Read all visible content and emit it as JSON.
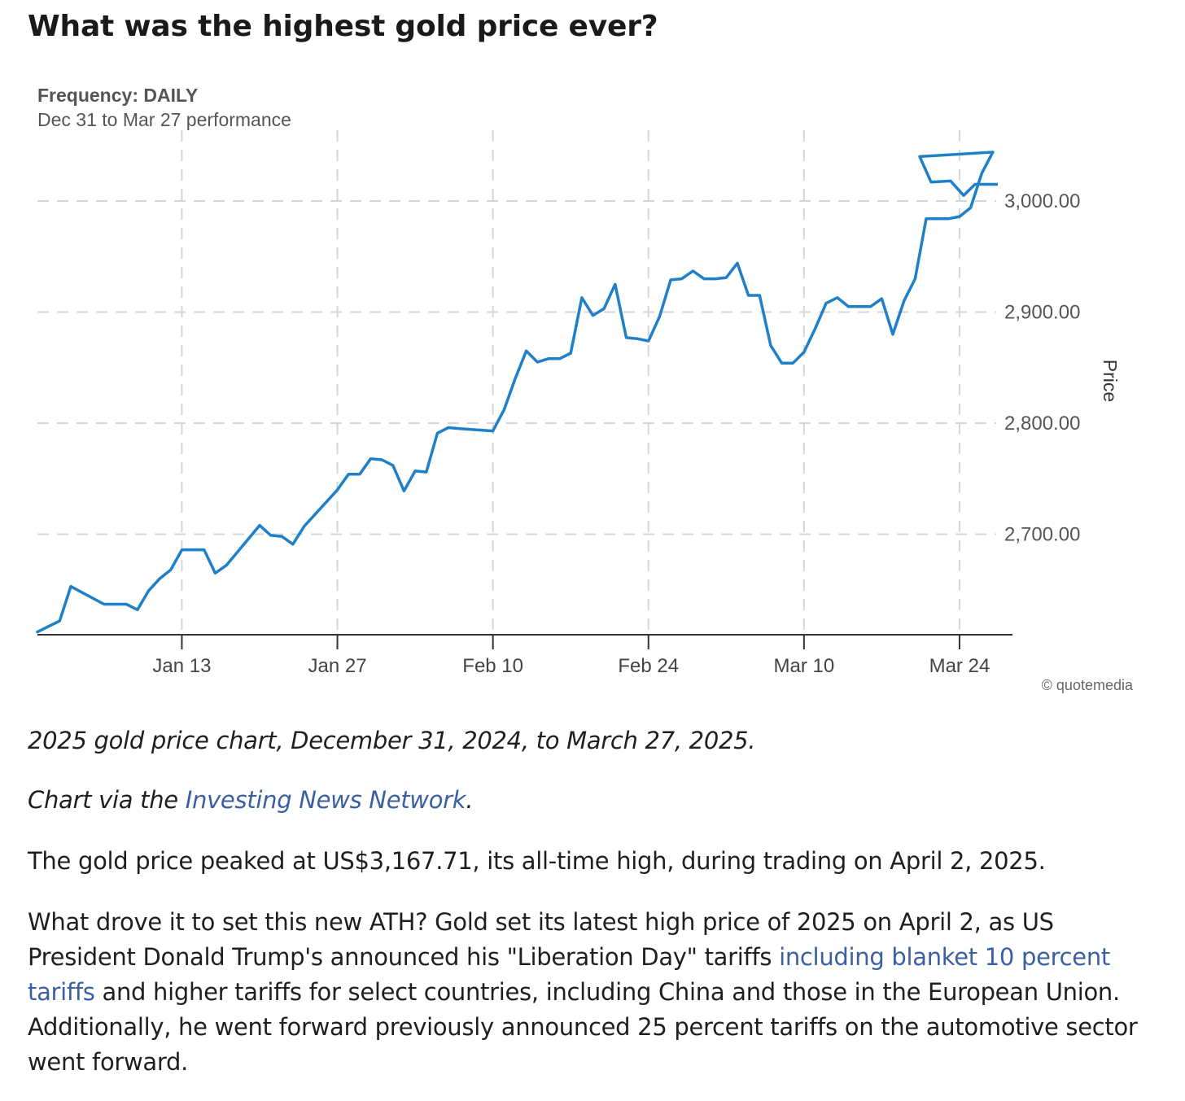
{
  "heading": "What was the highest gold price ever?",
  "chart_data": {
    "type": "line",
    "frequency_label": "Frequency: DAILY",
    "performance_label": "Dec 31 to Mar 27 performance",
    "ylabel": "Price",
    "credit": "© quotemedia",
    "x_ticks": [
      "Jan 13",
      "Jan 27",
      "Feb 10",
      "Feb 24",
      "Mar 10",
      "Mar 24"
    ],
    "y_ticks": [
      "3,000.00",
      "2,900.00",
      "2,800.00",
      "2,700.00"
    ],
    "ylim": [
      2610,
      3060
    ],
    "series": [
      {
        "color": "#1f7fc9",
        "points": [
          [
            "2024-12-31",
            2612
          ],
          [
            "2025-01-02",
            2622
          ],
          [
            "2025-01-03",
            2653
          ],
          [
            "2025-01-06",
            2637
          ],
          [
            "2025-01-07",
            2637
          ],
          [
            "2025-01-08",
            2637
          ],
          [
            "2025-01-09",
            2632
          ],
          [
            "2025-01-10",
            2649
          ],
          [
            "2025-01-11",
            2660
          ],
          [
            "2025-01-12",
            2668
          ],
          [
            "2025-01-13",
            2686
          ],
          [
            "2025-01-14",
            2686
          ],
          [
            "2025-01-15",
            2686
          ],
          [
            "2025-01-16",
            2665
          ],
          [
            "2025-01-17",
            2672
          ],
          [
            "2025-01-20",
            2708
          ],
          [
            "2025-01-21",
            2699
          ],
          [
            "2025-01-22",
            2698
          ],
          [
            "2025-01-23",
            2691
          ],
          [
            "2025-01-24",
            2707
          ],
          [
            "2025-01-27",
            2740
          ],
          [
            "2025-01-28",
            2754
          ],
          [
            "2025-01-29",
            2754
          ],
          [
            "2025-01-30",
            2768
          ],
          [
            "2025-01-31",
            2767
          ],
          [
            "2025-02-01",
            2762
          ],
          [
            "2025-02-02",
            2739
          ],
          [
            "2025-02-03",
            2757
          ],
          [
            "2025-02-04",
            2756
          ],
          [
            "2025-02-05",
            2791
          ],
          [
            "2025-02-06",
            2796
          ],
          [
            "2025-02-07",
            2795
          ],
          [
            "2025-02-10",
            2793
          ],
          [
            "2025-02-11",
            2812
          ],
          [
            "2025-02-12",
            2840
          ],
          [
            "2025-02-13",
            2865
          ],
          [
            "2025-02-14",
            2855
          ],
          [
            "2025-02-15",
            2858
          ],
          [
            "2025-02-16",
            2858
          ],
          [
            "2025-02-17",
            2863
          ],
          [
            "2025-02-18",
            2913
          ],
          [
            "2025-02-19",
            2897
          ],
          [
            "2025-02-20",
            2903
          ],
          [
            "2025-02-21",
            2925
          ],
          [
            "2025-02-22",
            2877
          ],
          [
            "2025-02-23",
            2876
          ],
          [
            "2025-02-24",
            2874
          ],
          [
            "2025-02-25",
            2896
          ],
          [
            "2025-02-26",
            2929
          ],
          [
            "2025-02-27",
            2930
          ],
          [
            "2025-02-28",
            2937
          ],
          [
            "2025-03-01",
            2930
          ],
          [
            "2025-03-02",
            2930
          ],
          [
            "2025-03-03",
            2931
          ],
          [
            "2025-03-04",
            2944
          ],
          [
            "2025-03-05",
            2915
          ],
          [
            "2025-03-06",
            2915
          ],
          [
            "2025-03-07",
            2870
          ],
          [
            "2025-03-08",
            2854
          ],
          [
            "2025-03-09",
            2854
          ],
          [
            "2025-03-10",
            2864
          ],
          [
            "2025-03-11",
            2885
          ],
          [
            "2025-03-12",
            2908
          ],
          [
            "2025-03-13",
            2913
          ],
          [
            "2025-03-14",
            2905
          ],
          [
            "2025-03-15",
            2905
          ],
          [
            "2025-03-16",
            2905
          ],
          [
            "2025-03-17",
            2912
          ],
          [
            "2025-03-18",
            2880
          ],
          [
            "2025-03-19",
            2910
          ],
          [
            "2025-03-20",
            2930
          ],
          [
            "2025-03-21",
            2984
          ],
          [
            "2025-03-22",
            2984
          ],
          [
            "2025-03-23",
            2984
          ],
          [
            "2025-03-24",
            2986
          ],
          [
            "2025-03-25",
            2994
          ],
          [
            "2025-03-26",
            3025
          ],
          [
            "2025-03-27",
            3044
          ]
        ]
      }
    ]
  },
  "caption": "2025 gold price chart, December 31, 2024, to March 27, 2025.",
  "credit_line": {
    "prefix": "Chart via the ",
    "link_text": "Investing News Network",
    "suffix": "."
  },
  "paragraph1": "The gold price peaked at US$3,167.71, its all-time high, during trading on April 2, 2025.",
  "paragraph2": {
    "part1": "What drove it to set this new ATH? Gold set its latest high price of 2025 on April 2, as US President Donald Trump's announced his \"Liberation Day\" tariffs ",
    "link_text": "including blanket 10 percent tariffs",
    "part2": " and higher tariffs for select countries, including China and those in the European Union. Additionally, he went forward previously announced 25 percent tariffs on the automotive sector went forward."
  }
}
